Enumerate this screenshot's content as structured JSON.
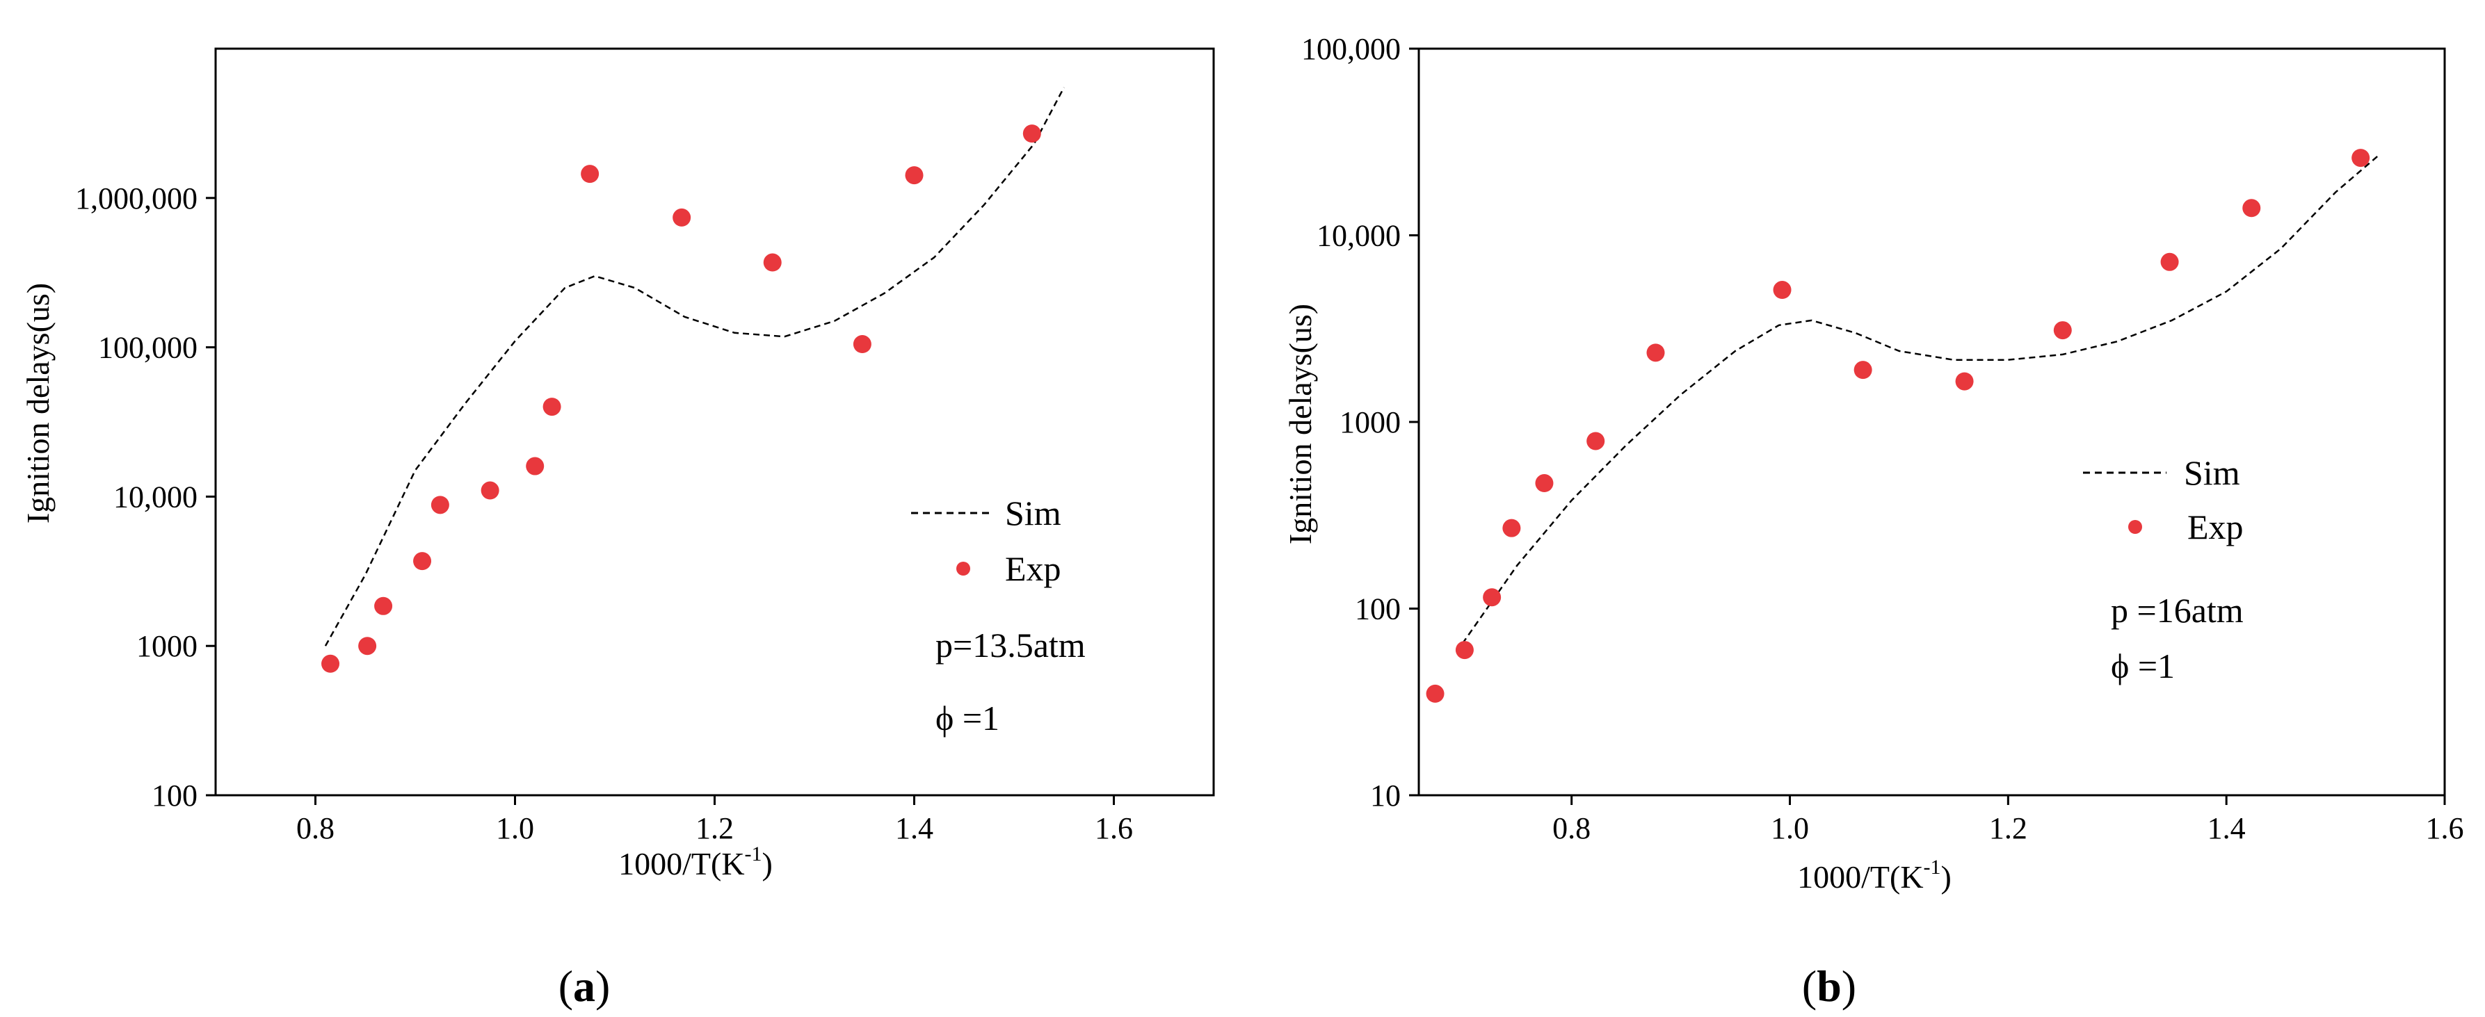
{
  "chart_data": [
    {
      "type": "scatter",
      "panel": "a",
      "caption_open": "(",
      "caption_letter": "a",
      "caption_close": ")",
      "xlabel": "1000/T(K",
      "xlabel_sup": "-1",
      "xlabel_end": ")",
      "ylabel": "Ignition delays(us)",
      "xlim": [
        0.7,
        1.7
      ],
      "ylim": [
        100,
        10000000
      ],
      "yscale": "log",
      "x_ticks": [
        {
          "v": 0.8,
          "label": "0.8"
        },
        {
          "v": 1.0,
          "label": "1.0"
        },
        {
          "v": 1.2,
          "label": "1.2"
        },
        {
          "v": 1.4,
          "label": "1.4"
        },
        {
          "v": 1.6,
          "label": "1.6"
        }
      ],
      "y_ticks": [
        {
          "v": 100,
          "label": "100"
        },
        {
          "v": 1000,
          "label": "1000"
        },
        {
          "v": 10000,
          "label": "10,000"
        },
        {
          "v": 100000,
          "label": "100,000"
        },
        {
          "v": 1000000,
          "label": "1,000,000"
        }
      ],
      "legend": {
        "position": "right-middle",
        "sim_label": "Sim",
        "exp_label": "Exp"
      },
      "annotations": [
        "p=13.5atm",
        "ϕ =1"
      ],
      "series": [
        {
          "name": "Sim",
          "style": "dashed-line",
          "x": [
            0.81,
            0.85,
            0.9,
            0.95,
            1.0,
            1.05,
            1.08,
            1.12,
            1.17,
            1.22,
            1.27,
            1.32,
            1.37,
            1.42,
            1.47,
            1.52,
            1.55
          ],
          "y": [
            1000,
            3000,
            15000,
            42000,
            110000,
            250000,
            300000,
            250000,
            160000,
            125000,
            118000,
            150000,
            230000,
            400000,
            900000,
            2300000,
            5500000
          ]
        },
        {
          "name": "Exp",
          "style": "markers",
          "x": [
            0.815,
            0.852,
            0.868,
            0.907,
            0.925,
            0.975,
            1.02,
            1.037,
            1.075,
            1.167,
            1.258,
            1.348,
            1.4,
            1.518
          ],
          "y": [
            760,
            1000,
            1850,
            3700,
            8800,
            11000,
            16000,
            40000,
            1450000,
            740000,
            370000,
            105000,
            1420000,
            2700000
          ]
        }
      ]
    },
    {
      "type": "scatter",
      "panel": "b",
      "caption_open": "(",
      "caption_letter": "b",
      "caption_close": ")",
      "xlabel": "1000/T(K",
      "xlabel_sup": "-1",
      "xlabel_end": ")",
      "ylabel": "Ignition delays(us)",
      "xlim": [
        0.66,
        1.6
      ],
      "ylim": [
        10,
        100000
      ],
      "yscale": "log",
      "x_ticks": [
        {
          "v": 0.8,
          "label": "0.8"
        },
        {
          "v": 1.0,
          "label": "1.0"
        },
        {
          "v": 1.2,
          "label": "1.2"
        },
        {
          "v": 1.4,
          "label": "1.4"
        },
        {
          "v": 1.6,
          "label": "1.6"
        }
      ],
      "y_ticks": [
        {
          "v": 10,
          "label": "10"
        },
        {
          "v": 100,
          "label": "100"
        },
        {
          "v": 1000,
          "label": "1000"
        },
        {
          "v": 10000,
          "label": "10,000"
        },
        {
          "v": 100000,
          "label": "100,000"
        }
      ],
      "legend": {
        "position": "right-middle",
        "sim_label": "Sim",
        "exp_label": "Exp"
      },
      "annotations": [
        "p =16atm",
        "ϕ =1"
      ],
      "series": [
        {
          "name": "Sim",
          "style": "dashed-line",
          "x": [
            0.7,
            0.75,
            0.8,
            0.85,
            0.9,
            0.95,
            0.99,
            1.02,
            1.06,
            1.1,
            1.15,
            1.2,
            1.25,
            1.3,
            1.35,
            1.4,
            1.45,
            1.5,
            1.54
          ],
          "y": [
            65,
            170,
            380,
            750,
            1400,
            2400,
            3300,
            3500,
            3000,
            2400,
            2150,
            2150,
            2300,
            2700,
            3500,
            5000,
            8500,
            17000,
            27000
          ]
        },
        {
          "name": "Exp",
          "style": "markers",
          "x": [
            0.675,
            0.702,
            0.727,
            0.745,
            0.775,
            0.822,
            0.877,
            0.993,
            1.067,
            1.16,
            1.25,
            1.348,
            1.423,
            1.523
          ],
          "y": [
            35,
            60,
            115,
            270,
            470,
            790,
            2350,
            5100,
            1900,
            1650,
            3100,
            7200,
            14000,
            26000
          ]
        }
      ]
    }
  ]
}
